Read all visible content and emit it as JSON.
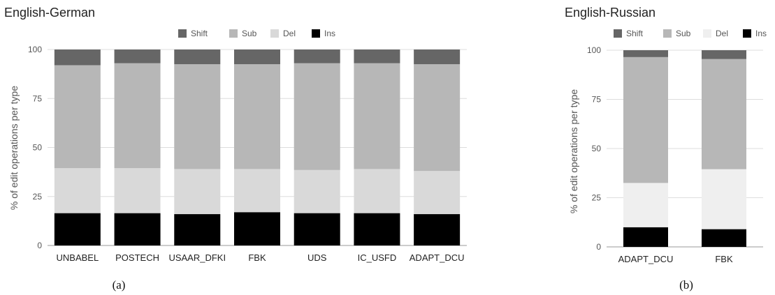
{
  "chart_data": [
    {
      "type": "bar",
      "stacked": true,
      "title": "English-German",
      "subcaption": "(a)",
      "xlabel": "",
      "ylabel": "% of edit operations per type",
      "ylim": [
        0,
        100
      ],
      "yticks": [
        0,
        25,
        50,
        75,
        100
      ],
      "grid": true,
      "legend_position": "top",
      "categories": [
        "UNBABEL",
        "POSTECH",
        "USAAR_DFKI",
        "FBK",
        "UDS",
        "IC_USFD",
        "ADAPT_DCU"
      ],
      "series": [
        {
          "name": "Ins",
          "color": "#000000",
          "values": [
            16.5,
            16.5,
            16.0,
            17.0,
            16.5,
            16.5,
            16.0
          ]
        },
        {
          "name": "Del",
          "color": "#d9d9d9",
          "values": [
            23.0,
            23.0,
            23.0,
            22.0,
            22.0,
            22.5,
            22.0
          ]
        },
        {
          "name": "Sub",
          "color": "#b7b7b7",
          "values": [
            52.5,
            53.5,
            53.5,
            53.5,
            54.5,
            54.0,
            54.5
          ]
        },
        {
          "name": "Shift",
          "color": "#666666",
          "values": [
            8.0,
            7.0,
            7.5,
            7.5,
            7.0,
            7.0,
            7.5
          ]
        }
      ],
      "legend_order": [
        "Shift",
        "Sub",
        "Del",
        "Ins"
      ]
    },
    {
      "type": "bar",
      "stacked": true,
      "title": "English-Russian",
      "subcaption": "(b)",
      "xlabel": "",
      "ylabel": "% of edit operations per type",
      "ylim": [
        0,
        100
      ],
      "yticks": [
        0,
        25,
        50,
        75,
        100
      ],
      "grid": true,
      "legend_position": "top",
      "categories": [
        "ADAPT_DCU",
        "FBK"
      ],
      "series": [
        {
          "name": "Ins",
          "color": "#000000",
          "values": [
            10.0,
            9.0
          ]
        },
        {
          "name": "Del",
          "color": "#efefef",
          "values": [
            22.5,
            30.5
          ]
        },
        {
          "name": "Sub",
          "color": "#b7b7b7",
          "values": [
            64.0,
            56.0
          ]
        },
        {
          "name": "Shift",
          "color": "#666666",
          "values": [
            3.5,
            4.5
          ]
        }
      ],
      "legend_order": [
        "Shift",
        "Sub",
        "Del",
        "Ins"
      ]
    }
  ]
}
